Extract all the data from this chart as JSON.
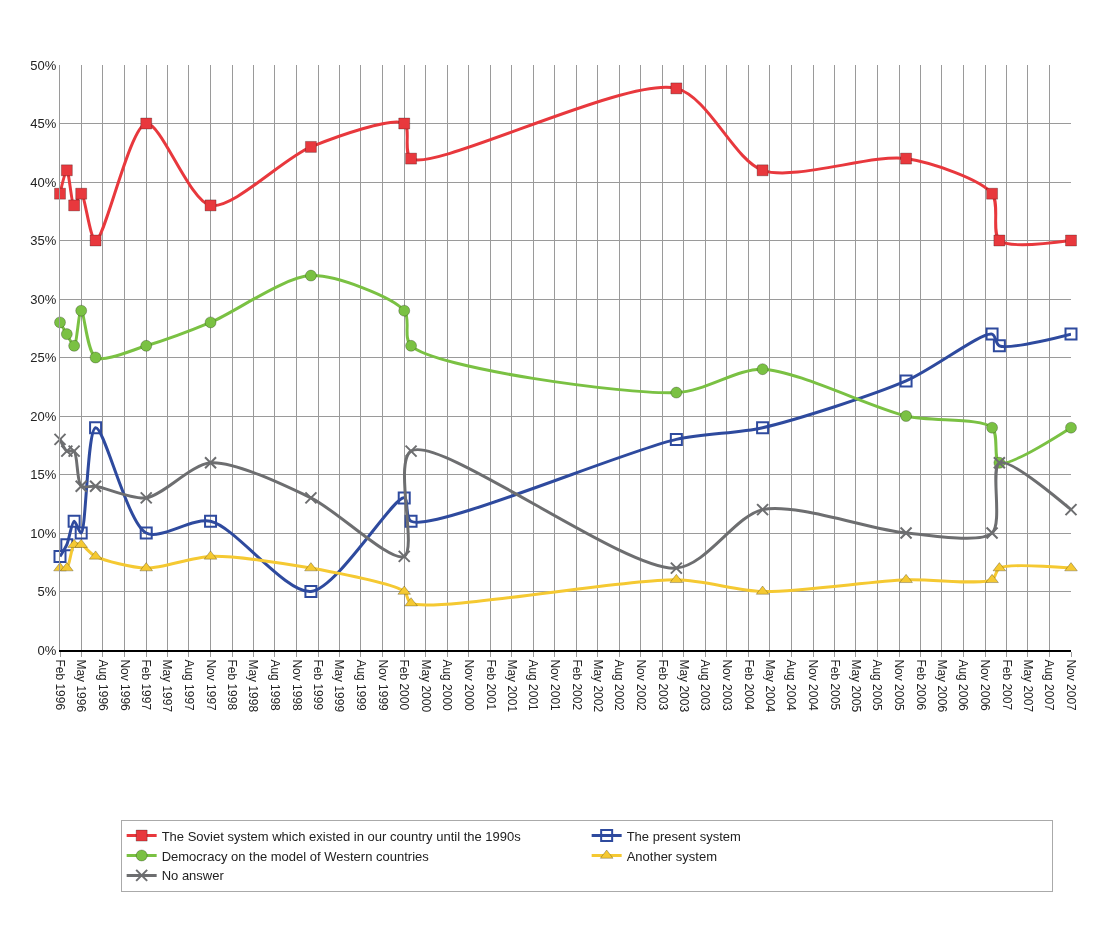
{
  "chart_data": {
    "type": "line",
    "x": [
      "1996-02",
      "1996-03",
      "1996-04",
      "1996-05",
      "1996-07",
      "1997-02",
      "1997-11",
      "1999-01",
      "2000-02",
      "2000-03",
      "2003-04",
      "2004-04",
      "2005-12",
      "2006-12",
      "2007-01",
      "2007-11"
    ],
    "series": [
      {
        "name": "The Soviet system which existed in our country until the 1990s",
        "color": "#e8383d",
        "marker": "square",
        "values": [
          39,
          41,
          38,
          39,
          35,
          45,
          38,
          43,
          45,
          42,
          48,
          41,
          42,
          39,
          35,
          35
        ]
      },
      {
        "name": "The present system",
        "color": "#2e4a9e",
        "marker": "square-open",
        "values": [
          8,
          9,
          11,
          10,
          19,
          10,
          11,
          5,
          13,
          11,
          18,
          19,
          23,
          27,
          26,
          27
        ]
      },
      {
        "name": "Democracy on the model of Western countries",
        "color": "#7ac143",
        "marker": "circle",
        "values": [
          28,
          27,
          26,
          29,
          25,
          26,
          28,
          32,
          29,
          26,
          22,
          24,
          20,
          19,
          16,
          19
        ]
      },
      {
        "name": "Another system",
        "color": "#f5c932",
        "marker": "triangle",
        "values": [
          7,
          7,
          9,
          9,
          8,
          7,
          8,
          7,
          5,
          4,
          6,
          5,
          6,
          6,
          7,
          7
        ]
      },
      {
        "name": "No answer",
        "color": "#6d6e70",
        "marker": "cross",
        "values": [
          18,
          17,
          17,
          14,
          14,
          13,
          16,
          13,
          8,
          17,
          7,
          12,
          10,
          10,
          16,
          12
        ]
      }
    ],
    "xlim": [
      "1996-02",
      "2007-11"
    ],
    "xticks": [
      {
        "value": "1996-02",
        "label": "Feb 1996"
      },
      {
        "value": "1996-05",
        "label": "May 1996"
      },
      {
        "value": "1996-08",
        "label": "Aug 1996"
      },
      {
        "value": "1996-11",
        "label": "Nov 1996"
      },
      {
        "value": "1997-02",
        "label": "Feb 1997"
      },
      {
        "value": "1997-05",
        "label": "May 1997"
      },
      {
        "value": "1997-08",
        "label": "Aug 1997"
      },
      {
        "value": "1997-11",
        "label": "Nov 1997"
      },
      {
        "value": "1998-02",
        "label": "Feb 1998"
      },
      {
        "value": "1998-05",
        "label": "May 1998"
      },
      {
        "value": "1998-08",
        "label": "Aug 1998"
      },
      {
        "value": "1998-11",
        "label": "Nov 1998"
      },
      {
        "value": "1999-02",
        "label": "Feb 1999"
      },
      {
        "value": "1999-05",
        "label": "May 1999"
      },
      {
        "value": "1999-08",
        "label": "Aug 1999"
      },
      {
        "value": "1999-11",
        "label": "Nov 1999"
      },
      {
        "value": "2000-02",
        "label": "Feb 2000"
      },
      {
        "value": "2000-05",
        "label": "May 2000"
      },
      {
        "value": "2000-08",
        "label": "Aug 2000"
      },
      {
        "value": "2000-11",
        "label": "Nov 2000"
      },
      {
        "value": "2001-02",
        "label": "Feb 2001"
      },
      {
        "value": "2001-05",
        "label": "May 2001"
      },
      {
        "value": "2001-08",
        "label": "Aug 2001"
      },
      {
        "value": "2001-11",
        "label": "Nov 2001"
      },
      {
        "value": "2002-02",
        "label": "Feb 2002"
      },
      {
        "value": "2002-05",
        "label": "May 2002"
      },
      {
        "value": "2002-08",
        "label": "Aug 2002"
      },
      {
        "value": "2002-11",
        "label": "Nov 2002"
      },
      {
        "value": "2003-02",
        "label": "Feb 2003"
      },
      {
        "value": "2003-05",
        "label": "May 2003"
      },
      {
        "value": "2003-08",
        "label": "Aug 2003"
      },
      {
        "value": "2003-11",
        "label": "Nov 2003"
      },
      {
        "value": "2004-02",
        "label": "Feb 2004"
      },
      {
        "value": "2004-05",
        "label": "May 2004"
      },
      {
        "value": "2004-08",
        "label": "Aug 2004"
      },
      {
        "value": "2004-11",
        "label": "Nov 2004"
      },
      {
        "value": "2005-02",
        "label": "Feb 2005"
      },
      {
        "value": "2005-05",
        "label": "May 2005"
      },
      {
        "value": "2005-08",
        "label": "Aug 2005"
      },
      {
        "value": "2005-11",
        "label": "Nov 2005"
      },
      {
        "value": "2006-02",
        "label": "Feb 2006"
      },
      {
        "value": "2006-05",
        "label": "May 2006"
      },
      {
        "value": "2006-08",
        "label": "Aug 2006"
      },
      {
        "value": "2006-11",
        "label": "Nov 2006"
      },
      {
        "value": "2007-02",
        "label": "Feb 2007"
      },
      {
        "value": "2007-05",
        "label": "May 2007"
      },
      {
        "value": "2007-08",
        "label": "Aug 2007"
      },
      {
        "value": "2007-11",
        "label": "Nov 2007"
      }
    ],
    "ylim": [
      0,
      50
    ],
    "yticks": [
      {
        "value": 0,
        "label": "0%"
      },
      {
        "value": 5,
        "label": "5%"
      },
      {
        "value": 10,
        "label": "10%"
      },
      {
        "value": 15,
        "label": "15%"
      },
      {
        "value": 20,
        "label": "20%"
      },
      {
        "value": 25,
        "label": "25%"
      },
      {
        "value": 30,
        "label": "30%"
      },
      {
        "value": 35,
        "label": "35%"
      },
      {
        "value": 40,
        "label": "40%"
      },
      {
        "value": 45,
        "label": "45%"
      },
      {
        "value": 50,
        "label": "50%"
      }
    ],
    "grid": true,
    "legend": "bottom",
    "line_style": "solid"
  }
}
